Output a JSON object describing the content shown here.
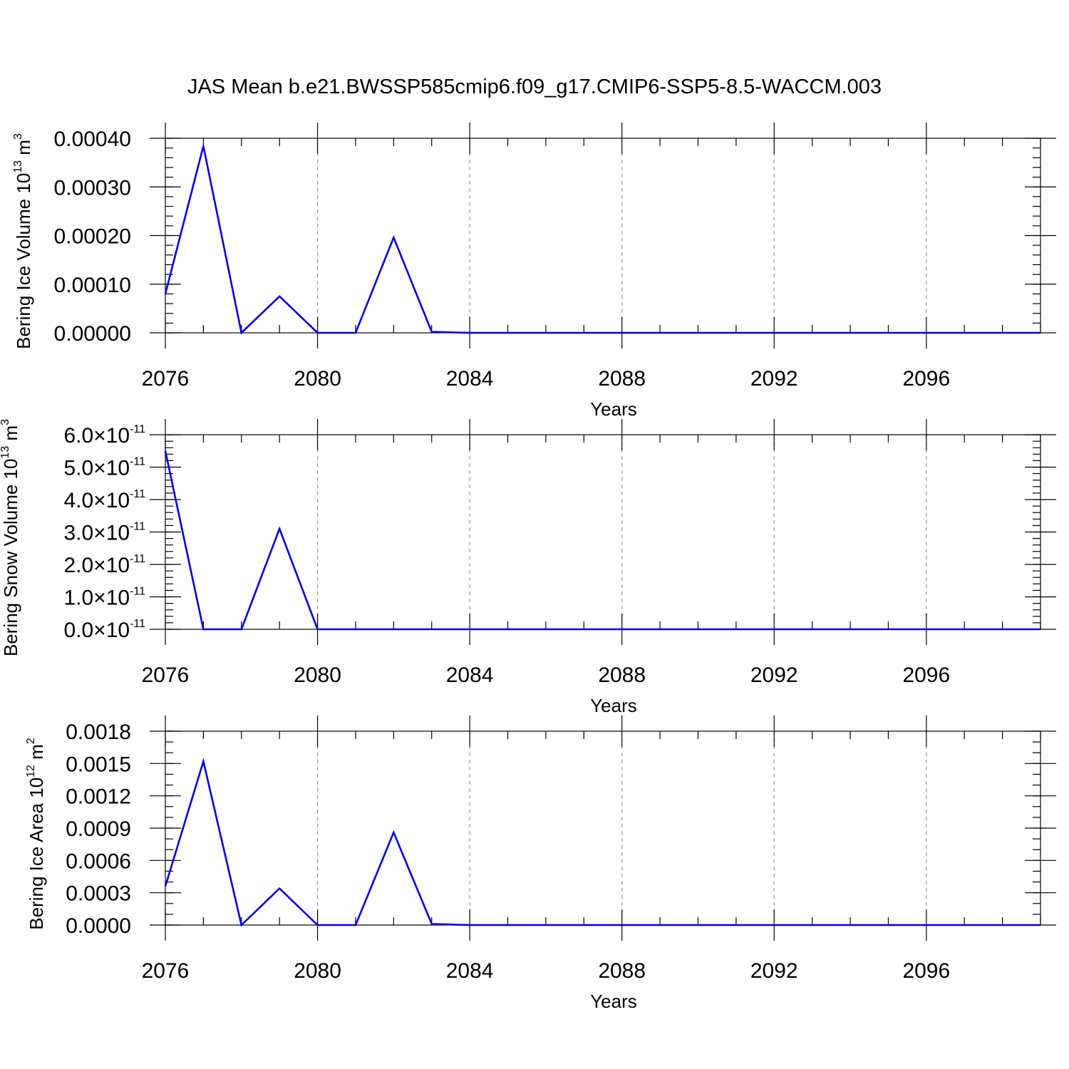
{
  "figure": {
    "title": "JAS Mean b.e21.BWSSP585cmip6.f09_g17.CMIP6-SSP5-8.5-WACCM.003"
  },
  "chart_data": [
    {
      "type": "line",
      "title": "",
      "xlabel": "Years",
      "ylabel": {
        "main": "Bering Ice Volume 10",
        "sup": "13",
        "unit": " m",
        "unit_sup": "3"
      },
      "xlim": [
        2076,
        2099
      ],
      "ylim": [
        0,
        0.0004
      ],
      "x_ticks": [
        2076,
        2080,
        2084,
        2088,
        2092,
        2096
      ],
      "x_tick_labels": [
        "2076",
        "2080",
        "2084",
        "2088",
        "2092",
        "2096"
      ],
      "x_minor_step": 1,
      "y_ticks": [
        0,
        0.0001,
        0.0002,
        0.0003,
        0.0004
      ],
      "y_tick_labels": [
        "0.00000",
        "0.00010",
        "0.00020",
        "0.00030",
        "0.00040"
      ],
      "y_tick_sci": false,
      "y_minor_step": 2e-05,
      "grid": "vertical dashed at major x ticks",
      "color": "#0000ee",
      "series": [
        {
          "x": [
            2076,
            2077,
            2078,
            2079,
            2080,
            2081,
            2082,
            2083,
            2084,
            2085,
            2086,
            2087,
            2088,
            2089,
            2090,
            2091,
            2092,
            2093,
            2094,
            2095,
            2096,
            2097,
            2098,
            2099
          ],
          "values": [
            8e-05,
            0.000384,
            0.0,
            7.5e-05,
            0.0,
            0.0,
            0.000196,
            2e-06,
            0.0,
            0,
            0,
            0,
            0,
            0,
            0,
            0,
            0,
            0,
            0,
            0,
            0,
            0,
            0,
            0
          ]
        }
      ]
    },
    {
      "type": "line",
      "title": "",
      "xlabel": "Years",
      "ylabel": {
        "main": "Bering Snow Volume 10",
        "sup": "13",
        "unit": " m",
        "unit_sup": "3"
      },
      "xlim": [
        2076,
        2099
      ],
      "ylim": [
        0,
        6e-11
      ],
      "x_ticks": [
        2076,
        2080,
        2084,
        2088,
        2092,
        2096
      ],
      "x_tick_labels": [
        "2076",
        "2080",
        "2084",
        "2088",
        "2092",
        "2096"
      ],
      "x_minor_step": 1,
      "y_ticks": [
        0,
        1e-11,
        2e-11,
        3e-11,
        4e-11,
        5e-11,
        6e-11
      ],
      "y_tick_labels": [
        "0.0",
        "1.0",
        "2.0",
        "3.0",
        "4.0",
        "5.0",
        "6.0"
      ],
      "y_tick_sci": true,
      "y_tick_times": "×10",
      "y_tick_exp": "-11",
      "y_minor_step": 2e-12,
      "grid": "vertical dashed at major x ticks",
      "color": "#0000ee",
      "series": [
        {
          "x": [
            2076,
            2077,
            2078,
            2079,
            2080,
            2081,
            2082,
            2083,
            2084,
            2085,
            2086,
            2087,
            2088,
            2089,
            2090,
            2091,
            2092,
            2093,
            2094,
            2095,
            2096,
            2097,
            2098,
            2099
          ],
          "values": [
            5.5e-11,
            0,
            0,
            3.1e-11,
            0,
            0,
            0,
            0,
            0,
            0,
            0,
            0,
            0,
            0,
            0,
            0,
            0,
            0,
            0,
            0,
            0,
            0,
            0,
            0
          ]
        }
      ]
    },
    {
      "type": "line",
      "title": "",
      "xlabel": "Years",
      "ylabel": {
        "main": "Bering Ice Area 10",
        "sup": "12",
        "unit": " m",
        "unit_sup": "2"
      },
      "xlim": [
        2076,
        2099
      ],
      "ylim": [
        0,
        0.0018
      ],
      "x_ticks": [
        2076,
        2080,
        2084,
        2088,
        2092,
        2096
      ],
      "x_tick_labels": [
        "2076",
        "2080",
        "2084",
        "2088",
        "2092",
        "2096"
      ],
      "x_minor_step": 1,
      "y_ticks": [
        0,
        0.0003,
        0.0006,
        0.0009,
        0.0012,
        0.0015,
        0.0018
      ],
      "y_tick_labels": [
        "0.0000",
        "0.0003",
        "0.0006",
        "0.0009",
        "0.0012",
        "0.0015",
        "0.0018"
      ],
      "y_tick_sci": false,
      "y_minor_step": 0.0001,
      "grid": "vertical dashed at major x ticks",
      "color": "#0000ee",
      "series": [
        {
          "x": [
            2076,
            2077,
            2078,
            2079,
            2080,
            2081,
            2082,
            2083,
            2084,
            2085,
            2086,
            2087,
            2088,
            2089,
            2090,
            2091,
            2092,
            2093,
            2094,
            2095,
            2096,
            2097,
            2098,
            2099
          ],
          "values": [
            0.00036,
            0.00152,
            0.0,
            0.00034,
            0.0,
            0.0,
            0.00086,
            1e-05,
            0.0,
            0,
            0,
            0,
            0,
            0,
            0,
            0,
            0,
            0,
            0,
            0,
            0,
            0,
            0,
            0
          ]
        }
      ]
    }
  ]
}
